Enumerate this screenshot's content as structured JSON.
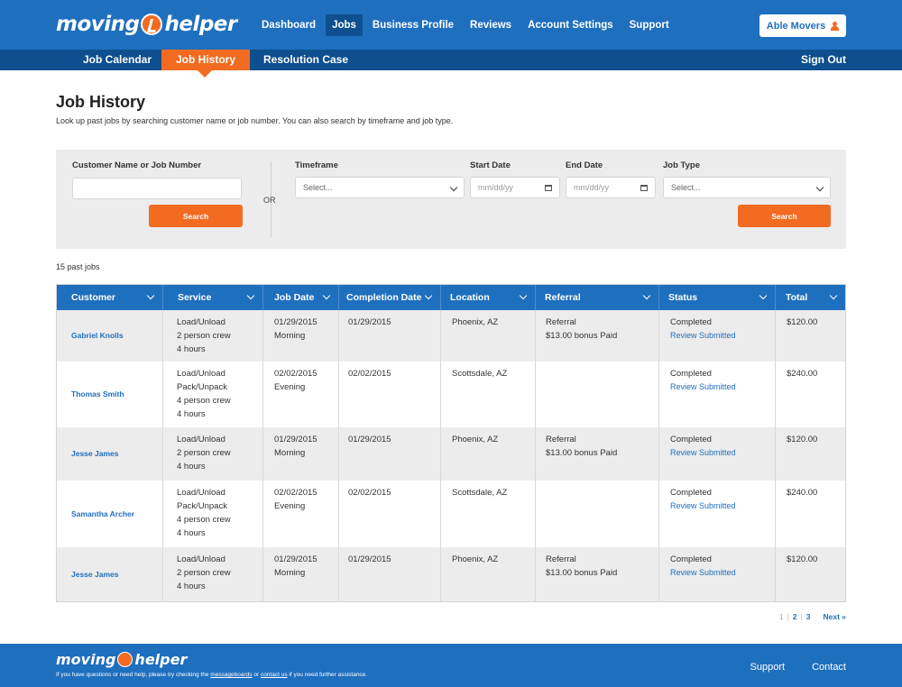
{
  "header": {
    "logo_left": "moving",
    "logo_right": "helper",
    "nav": [
      "Dashboard",
      "Jobs",
      "Business Profile",
      "Reviews",
      "Account Settings",
      "Support"
    ],
    "active_nav": "Jobs",
    "account_label": "Able Movers"
  },
  "subnav": {
    "items": [
      "Job Calendar",
      "Job History",
      "Resolution Case"
    ],
    "active": "Job History",
    "sign_out": "Sign Out"
  },
  "page": {
    "title": "Job History",
    "description": "Look up past jobs by searching customer name or job number. You can also search by timeframe and job type."
  },
  "search": {
    "name_label": "Customer Name or Job Number",
    "name_value": "",
    "search_label": "Search",
    "or_label": "OR",
    "timeframe_label": "Timeframe",
    "timeframe_value": "Select...",
    "start_label": "Start Date",
    "start_placeholder": "mm/dd/yy",
    "end_label": "End Date",
    "end_placeholder": "mm/dd/yy",
    "jobtype_label": "Job Type",
    "jobtype_value": "Select..."
  },
  "results": {
    "count_text": "15 past jobs",
    "columns": [
      "Customer",
      "Service",
      "Job Date",
      "Completion Date",
      "Location",
      "Referral",
      "Status",
      "Total"
    ],
    "rows": [
      {
        "customer": "Gabriel Knolls",
        "service": [
          "Load/Unload",
          "2 person crew",
          "4 hours"
        ],
        "job_date": [
          "01/29/2015",
          "Morning"
        ],
        "completion_date": "01/29/2015",
        "location": "Phoenix, AZ",
        "referral": [
          "Referral",
          "$13.00 bonus Paid"
        ],
        "status": "Completed",
        "review": "Review Submitted",
        "total": "$120.00"
      },
      {
        "customer": "Thomas Smith",
        "service": [
          "Load/Unload",
          "Pack/Unpack",
          "4 person crew",
          "4 hours"
        ],
        "job_date": [
          "02/02/2015",
          "Evening"
        ],
        "completion_date": "02/02/2015",
        "location": "Scottsdale, AZ",
        "referral": [
          "",
          ""
        ],
        "status": "Completed",
        "review": "Review Submitted",
        "total": "$240.00"
      },
      {
        "customer": "Jesse James",
        "service": [
          "Load/Unload",
          "2 person crew",
          "4 hours"
        ],
        "job_date": [
          "01/29/2015",
          "Morning"
        ],
        "completion_date": "01/29/2015",
        "location": "Phoenix, AZ",
        "referral": [
          "Referral",
          "$13.00 bonus Paid"
        ],
        "status": "Completed",
        "review": "Review Submitted",
        "total": "$120.00"
      },
      {
        "customer": "Samantha Archer",
        "service": [
          "Load/Unload",
          "Pack/Unpack",
          "4 person crew",
          "4 hours"
        ],
        "job_date": [
          "02/02/2015",
          "Evening"
        ],
        "completion_date": "02/02/2015",
        "location": "Scottsdale, AZ",
        "referral": [
          "",
          ""
        ],
        "status": "Completed",
        "review": "Review Submitted",
        "total": "$240.00"
      },
      {
        "customer": "Jesse James",
        "service": [
          "Load/Unload",
          "2 person crew",
          "4 hours"
        ],
        "job_date": [
          "01/29/2015",
          "Morning"
        ],
        "completion_date": "01/29/2015",
        "location": "Phoenix, AZ",
        "referral": [
          "Referral",
          "$13.00 bonus Paid"
        ],
        "status": "Completed",
        "review": "Review Submitted",
        "total": "$120.00"
      }
    ]
  },
  "pagination": {
    "pages": [
      "1",
      "2",
      "3"
    ],
    "current": "1",
    "next": "Next »"
  },
  "footer": {
    "logo_left": "moving",
    "logo_right": "helper",
    "note_before": "If you have questions or need help, please try checking the ",
    "note_link1": "messageboards",
    "note_mid": " or ",
    "note_link2": "contact us",
    "note_after": " if you need further assistance.",
    "links": [
      "Support",
      "Contact"
    ]
  },
  "colors": {
    "brand_blue": "#1f6fbf",
    "dark_blue": "#0d4f8f",
    "accent_orange": "#f26b21"
  }
}
